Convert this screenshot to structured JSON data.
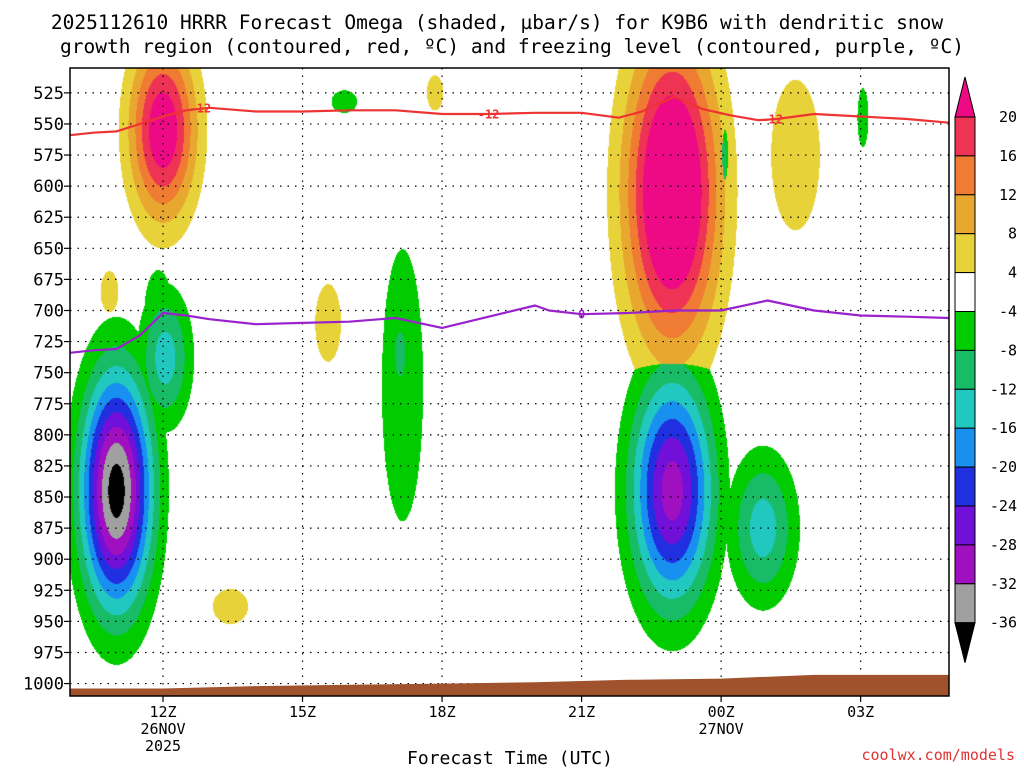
{
  "chart_data": {
    "type": "heatmap",
    "title_line1": "2025112610 HRRR Forecast Omega (shaded, µbar/s) for K9B6 with dendritic snow",
    "title_line2": "growth region (contoured, red, ºC) and freezing level (contoured, purple, ºC)",
    "xlabel": "Forecast Time (UTC)",
    "credit": "coolwx.com/models",
    "xlim": [
      10,
      28.9
    ],
    "ylim": [
      1010,
      505
    ],
    "x_ticks": [
      {
        "x": 12,
        "l1": "12Z",
        "l2": "26NOV",
        "l3": "2025"
      },
      {
        "x": 15,
        "l1": "15Z",
        "l2": "",
        "l3": ""
      },
      {
        "x": 18,
        "l1": "18Z",
        "l2": "",
        "l3": ""
      },
      {
        "x": 21,
        "l1": "21Z",
        "l2": "",
        "l3": ""
      },
      {
        "x": 24,
        "l1": "00Z",
        "l2": "27NOV",
        "l3": ""
      },
      {
        "x": 27,
        "l1": "03Z",
        "l2": "",
        "l3": ""
      }
    ],
    "y_ticks": [
      525,
      550,
      575,
      600,
      625,
      650,
      675,
      700,
      725,
      750,
      775,
      800,
      825,
      850,
      875,
      900,
      925,
      950,
      975,
      1000
    ],
    "colorbar": {
      "levels": [
        20,
        16,
        12,
        8,
        4,
        -4,
        -8,
        -12,
        -16,
        -20,
        -24,
        -28,
        -32,
        -36
      ],
      "colors": [
        "#ee3355",
        "#f07b32",
        "#e8a830",
        "#e8d23a",
        "#ffffff",
        "#00cc00",
        "#19bc66",
        "#20c8c0",
        "#1890f0",
        "#2030e0",
        "#7010d8",
        "#a010c0",
        "#a0a0a0"
      ],
      "top_color": "#ee0a84",
      "bottom_color": "#000000"
    },
    "negative_blobs": [
      {
        "cx": 11.0,
        "cy": 845,
        "rx": 0.95,
        "ry": 118,
        "peak": -38
      },
      {
        "cx": 12.05,
        "cy": 738,
        "rx": 0.7,
        "ry": 68,
        "peak": -14
      },
      {
        "cx": 11.9,
        "cy": 700,
        "rx": 0.5,
        "ry": 55,
        "peak": -7
      },
      {
        "cx": 17.15,
        "cy": 760,
        "rx": 0.75,
        "ry": 185,
        "peak": -7
      },
      {
        "cx": 17.1,
        "cy": 735,
        "rx": 0.25,
        "ry": 40,
        "peak": -11
      },
      {
        "cx": 22.95,
        "cy": 845,
        "rx": 1.1,
        "ry": 115,
        "peak": -30
      },
      {
        "cx": 24.9,
        "cy": 875,
        "rx": 0.9,
        "ry": 75,
        "peak": -14
      },
      {
        "cx": 24.05,
        "cy": 580,
        "rx": 0.22,
        "ry": 65,
        "peak": -9
      },
      {
        "cx": 27.05,
        "cy": 545,
        "rx": 0.2,
        "ry": 40,
        "peak": -7
      },
      {
        "cx": 15.9,
        "cy": 532,
        "rx": 0.55,
        "ry": 18,
        "peak": -6
      }
    ],
    "positive_blobs": [
      {
        "cx": 12.0,
        "cy": 555,
        "rx": 0.9,
        "ry": 90,
        "peak": 24
      },
      {
        "cx": 22.95,
        "cy": 605,
        "rx": 1.25,
        "ry": 155,
        "peak": 30
      },
      {
        "cx": 25.6,
        "cy": 575,
        "rx": 0.95,
        "ry": 110,
        "peak": 6.5
      },
      {
        "cx": 10.85,
        "cy": 685,
        "rx": 0.38,
        "ry": 33,
        "peak": 6
      },
      {
        "cx": 15.55,
        "cy": 710,
        "rx": 0.55,
        "ry": 62,
        "peak": 6
      },
      {
        "cx": 13.45,
        "cy": 938,
        "rx": 0.75,
        "ry": 28,
        "peak": 6
      },
      {
        "cx": 17.85,
        "cy": 525,
        "rx": 0.35,
        "ry": 28,
        "peak": 6
      },
      {
        "cx": 24.0,
        "cy": 905,
        "rx": 0.05,
        "ry": 25,
        "peak": 5
      }
    ],
    "snow_growth_contour": {
      "label": "-12",
      "color": "#ee3333",
      "points": [
        [
          10.0,
          559
        ],
        [
          10.5,
          557
        ],
        [
          11.0,
          556
        ],
        [
          11.5,
          550
        ],
        [
          12.0,
          544
        ],
        [
          12.5,
          539
        ],
        [
          13.0,
          537
        ],
        [
          14.0,
          540
        ],
        [
          15.0,
          540
        ],
        [
          16.0,
          539
        ],
        [
          17.0,
          539
        ],
        [
          18.0,
          542
        ],
        [
          19.0,
          542
        ],
        [
          20.0,
          541
        ],
        [
          21.0,
          541
        ],
        [
          21.8,
          545
        ],
        [
          22.3,
          540
        ],
        [
          23.0,
          528
        ],
        [
          23.6,
          538
        ],
        [
          24.2,
          543
        ],
        [
          24.8,
          547
        ],
        [
          25.2,
          546
        ],
        [
          26.0,
          542
        ],
        [
          27.0,
          544
        ],
        [
          28.0,
          546
        ],
        [
          28.9,
          549
        ]
      ]
    },
    "freezing_level_contour": {
      "label": "0",
      "color": "#9922cc",
      "points": [
        [
          10.0,
          734
        ],
        [
          10.5,
          732
        ],
        [
          11.0,
          731
        ],
        [
          11.5,
          720
        ],
        [
          12.0,
          702
        ],
        [
          12.5,
          704
        ],
        [
          13.0,
          707
        ],
        [
          14.0,
          711
        ],
        [
          15.0,
          710
        ],
        [
          16.0,
          709
        ],
        [
          17.0,
          706
        ],
        [
          18.0,
          714
        ],
        [
          19.0,
          705
        ],
        [
          20.0,
          696
        ],
        [
          20.3,
          700
        ],
        [
          21.0,
          703
        ],
        [
          22.0,
          702
        ],
        [
          23.0,
          700
        ],
        [
          24.0,
          700
        ],
        [
          25.0,
          692
        ],
        [
          26.0,
          700
        ],
        [
          27.0,
          704
        ],
        [
          28.0,
          705
        ],
        [
          28.9,
          706
        ]
      ]
    },
    "ground": {
      "color": "#a0522d",
      "points": [
        [
          10.0,
          1004
        ],
        [
          12.0,
          1004
        ],
        [
          14.0,
          1002
        ],
        [
          16.0,
          1001
        ],
        [
          18.0,
          1000
        ],
        [
          20.0,
          999
        ],
        [
          22.0,
          997
        ],
        [
          24.0,
          996
        ],
        [
          26.0,
          993
        ],
        [
          28.9,
          993
        ]
      ]
    }
  }
}
